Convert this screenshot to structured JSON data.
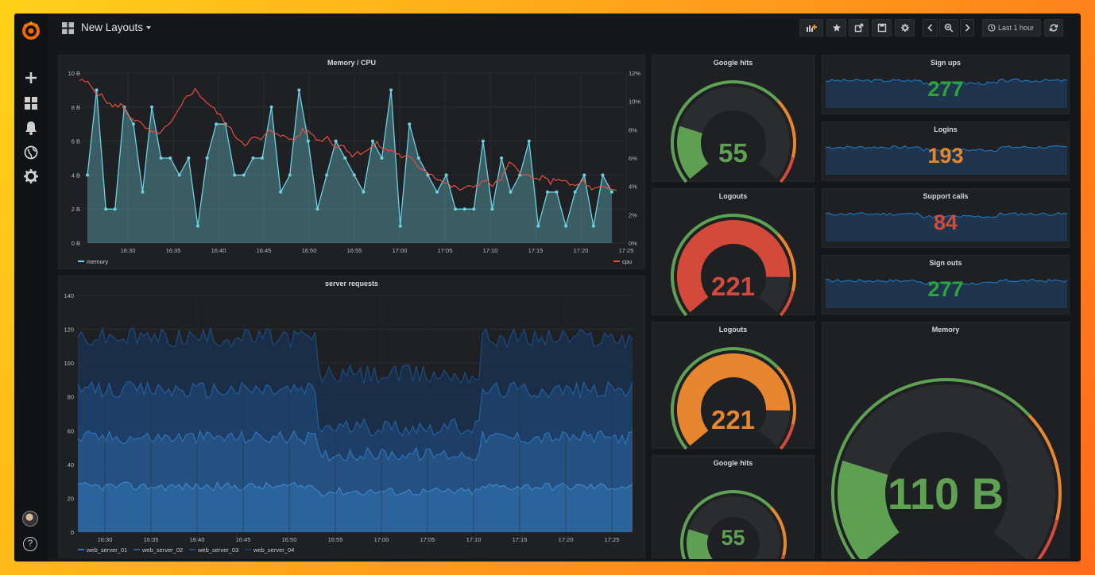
{
  "navbar": {
    "title": "New Layouts",
    "time_range": "Last 1 hour"
  },
  "icons": {
    "logo": "grafana-logo-icon",
    "add": "plus-icon",
    "dashboards": "dashboards-grid-icon",
    "alerting": "bell-icon",
    "explore": "globe-icon",
    "config": "gear-icon",
    "help": "question-icon",
    "add_panel": "add-panel-icon",
    "star": "star-icon",
    "share": "share-icon",
    "save": "save-icon",
    "settings": "gear-icon",
    "back": "chevron-left-icon",
    "zoom": "zoom-out-icon",
    "forward": "chevron-right-icon",
    "clock": "clock-icon",
    "refresh": "refresh-icon"
  },
  "help_glyph": "?",
  "colors": {
    "green": "#5ea153",
    "orange": "#e8862f",
    "red": "#d44a3a",
    "memory": "#6ed0e0",
    "cpu": "#e24d42",
    "spark": "#1f78c1"
  },
  "memory_cpu": {
    "title": "Memory / CPU",
    "left_ticks": [
      "0 B",
      "2 B",
      "4 B",
      "6 B",
      "8 B",
      "10 B"
    ],
    "right_ticks": [
      "0%",
      "2%",
      "4%",
      "6%",
      "8%",
      "10%",
      "12%"
    ],
    "x_ticks": [
      "16:30",
      "16:35",
      "16:40",
      "16:45",
      "16:50",
      "16:55",
      "17:00",
      "17:05",
      "17:10",
      "17:15",
      "17:20",
      "17:25"
    ],
    "legend_memory": "memory",
    "legend_cpu": "cpu",
    "memory_values": [
      4,
      9,
      2,
      2,
      8,
      7,
      3,
      8,
      5,
      5,
      4,
      5,
      1,
      5,
      7,
      7,
      4,
      4,
      5,
      5,
      8,
      3,
      4,
      9,
      6,
      2,
      4,
      6,
      5,
      4,
      3,
      6,
      5,
      9,
      1,
      7,
      5,
      4,
      3,
      4,
      2,
      2,
      2,
      6,
      2,
      5,
      3,
      4,
      6,
      1,
      3,
      3,
      1,
      3,
      4,
      1,
      4,
      3
    ],
    "cpu_values": [
      11.5,
      11.3,
      10.7,
      10.2,
      9.6,
      9.8,
      9.0,
      8.6,
      8.1,
      7.7,
      7.9,
      8.4,
      9.3,
      10.4,
      10.8,
      10.2,
      9.6,
      9.0,
      8.2,
      7.5,
      7.0,
      7.4,
      7.3,
      7.9,
      7.8,
      7.4,
      7.3,
      7.9,
      7.8,
      7.2,
      7.5,
      6.8,
      6.9,
      6.2,
      6.4,
      6.6,
      7.0,
      6.6,
      6.5,
      6.1,
      6.0,
      5.4,
      5.1,
      4.7,
      4.3,
      4.0,
      3.8,
      3.9,
      4.1,
      4.4,
      4.1,
      4.5,
      5.6,
      5.2,
      4.8,
      4.5,
      4.6,
      4.3,
      4.6,
      4.2,
      4.0,
      4.4,
      3.7,
      3.9,
      3.8,
      3.7
    ],
    "left_max": 10,
    "right_max": 12
  },
  "server_requests": {
    "title": "server requests",
    "y_ticks": [
      "0",
      "20",
      "40",
      "60",
      "80",
      "100",
      "120",
      "140"
    ],
    "x_ticks": [
      "16:30",
      "16:35",
      "16:40",
      "16:45",
      "16:50",
      "16:55",
      "17:00",
      "17:05",
      "17:10",
      "17:15",
      "17:20",
      "17:25"
    ],
    "y_max": 140,
    "legend": [
      "web_server_01",
      "web_server_02",
      "web_server_03",
      "web_server_04"
    ],
    "series_colors": [
      "#3273b0",
      "#2a5f99",
      "#1f4c80",
      "#173a66"
    ]
  },
  "gauges": {
    "google_hits_1": {
      "title": "Google hits",
      "value": "55"
    },
    "logouts_1": {
      "title": "Logouts",
      "value": "221"
    },
    "logouts_2": {
      "title": "Logouts",
      "value": "221"
    },
    "google_hits_2": {
      "title": "Google hits",
      "value": "55"
    },
    "memory": {
      "title": "Memory",
      "value": "110 B"
    }
  },
  "gauge_levels": {
    "google_hits_1": 0.22,
    "logouts_1": 0.85,
    "logouts_2": 0.85,
    "google_hits_2": 0.22,
    "memory": 0.22
  },
  "stats": {
    "sign_ups": {
      "title": "Sign ups",
      "value": "277"
    },
    "logins": {
      "title": "Logins",
      "value": "193"
    },
    "support_calls": {
      "title": "Support calls",
      "value": "84"
    },
    "sign_outs": {
      "title": "Sign outs",
      "value": "277"
    }
  }
}
